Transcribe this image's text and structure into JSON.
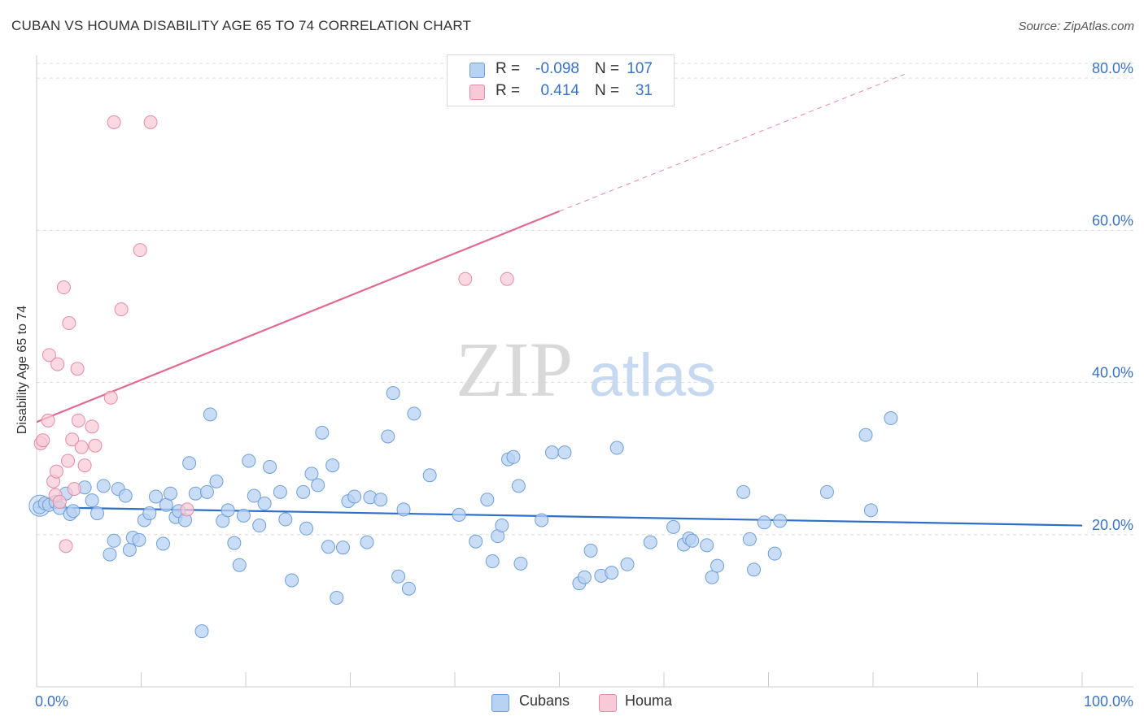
{
  "title": "CUBAN VS HOUMA DISABILITY AGE 65 TO 74 CORRELATION CHART",
  "source": "Source: ZipAtlas.com",
  "watermark": {
    "zip": "ZIP",
    "atlas": "atlas"
  },
  "legend": {
    "rows": [
      {
        "r_label": "R =",
        "r_value": "-0.098",
        "n_label": "N =",
        "n_value": "107"
      },
      {
        "r_label": "R =",
        "r_value": "0.414",
        "n_label": "N =",
        "n_value": "31"
      }
    ]
  },
  "bottom_legend": [
    "Cubans",
    "Houma"
  ],
  "colors": {
    "cubans_fill": "#b8d2f3",
    "cubans_stroke": "#6f9fd8",
    "cubans_line": "#2d6fc9",
    "houma_fill": "#f8c9d6",
    "houma_stroke": "#e88aa6",
    "houma_line": "#e06a92",
    "grid": "#dddddd",
    "axis_label": "#3b73c4"
  },
  "chart_data": {
    "type": "scatter",
    "title": "CUBAN VS HOUMA DISABILITY AGE 65 TO 74 CORRELATION CHART",
    "xlabel": "",
    "ylabel": "Disability Age 65 to 74",
    "xlim": [
      0,
      100
    ],
    "ylim": [
      0,
      83
    ],
    "x_tick_labels": [
      "0.0%",
      "100.0%"
    ],
    "y_ticks": [
      20,
      40,
      60,
      80
    ],
    "y_tick_labels": [
      "20.0%",
      "40.0%",
      "60.0%",
      "80.0%"
    ],
    "grid": "horizontal dashed",
    "series": [
      {
        "name": "Cubans",
        "trend": {
          "x": [
            0,
            100
          ],
          "y": [
            23.6,
            21.2
          ]
        },
        "points": [
          [
            0.3,
            23.6
          ],
          [
            0.8,
            24.1
          ],
          [
            1.2,
            23.9
          ],
          [
            1.8,
            24.3
          ],
          [
            2.2,
            23.5
          ],
          [
            2.8,
            25.4
          ],
          [
            3.2,
            22.7
          ],
          [
            3.5,
            23.1
          ],
          [
            4.6,
            26.2
          ],
          [
            5.3,
            24.5
          ],
          [
            5.8,
            22.8
          ],
          [
            6.4,
            26.4
          ],
          [
            7.0,
            17.4
          ],
          [
            7.4,
            19.2
          ],
          [
            7.8,
            26.0
          ],
          [
            8.5,
            25.1
          ],
          [
            8.9,
            18.0
          ],
          [
            9.2,
            19.6
          ],
          [
            9.8,
            19.3
          ],
          [
            10.3,
            21.9
          ],
          [
            10.8,
            22.8
          ],
          [
            11.4,
            25.0
          ],
          [
            12.1,
            18.8
          ],
          [
            12.4,
            23.9
          ],
          [
            12.8,
            25.4
          ],
          [
            13.3,
            22.3
          ],
          [
            13.6,
            23.1
          ],
          [
            14.2,
            21.9
          ],
          [
            14.6,
            29.4
          ],
          [
            15.2,
            25.4
          ],
          [
            15.8,
            7.3
          ],
          [
            16.3,
            25.6
          ],
          [
            16.6,
            35.8
          ],
          [
            17.2,
            27.0
          ],
          [
            17.8,
            21.8
          ],
          [
            18.3,
            23.2
          ],
          [
            18.9,
            18.9
          ],
          [
            19.4,
            16.0
          ],
          [
            19.8,
            22.5
          ],
          [
            20.3,
            29.7
          ],
          [
            20.8,
            25.1
          ],
          [
            21.3,
            21.2
          ],
          [
            21.8,
            24.1
          ],
          [
            22.3,
            28.9
          ],
          [
            23.3,
            25.6
          ],
          [
            23.8,
            22.0
          ],
          [
            24.4,
            14.0
          ],
          [
            25.5,
            25.6
          ],
          [
            25.8,
            20.8
          ],
          [
            26.3,
            28.0
          ],
          [
            26.9,
            26.5
          ],
          [
            27.3,
            33.4
          ],
          [
            27.9,
            18.4
          ],
          [
            28.3,
            29.1
          ],
          [
            28.7,
            11.7
          ],
          [
            29.3,
            18.3
          ],
          [
            29.8,
            24.4
          ],
          [
            30.4,
            25.0
          ],
          [
            31.6,
            19.0
          ],
          [
            31.9,
            24.9
          ],
          [
            32.9,
            24.6
          ],
          [
            33.6,
            32.9
          ],
          [
            34.1,
            38.6
          ],
          [
            34.6,
            14.5
          ],
          [
            35.1,
            23.3
          ],
          [
            35.6,
            12.9
          ],
          [
            36.1,
            35.9
          ],
          [
            37.6,
            27.8
          ],
          [
            40.4,
            22.6
          ],
          [
            42.0,
            19.1
          ],
          [
            43.1,
            24.6
          ],
          [
            43.6,
            16.5
          ],
          [
            44.1,
            19.8
          ],
          [
            44.5,
            21.2
          ],
          [
            45.1,
            29.9
          ],
          [
            45.6,
            30.2
          ],
          [
            46.1,
            26.4
          ],
          [
            46.3,
            16.2
          ],
          [
            48.3,
            21.9
          ],
          [
            49.3,
            30.8
          ],
          [
            50.5,
            30.8
          ],
          [
            51.9,
            13.6
          ],
          [
            52.4,
            14.4
          ],
          [
            53.0,
            17.9
          ],
          [
            54.0,
            14.6
          ],
          [
            55.0,
            15.0
          ],
          [
            55.5,
            31.4
          ],
          [
            56.5,
            16.1
          ],
          [
            58.7,
            19.0
          ],
          [
            60.9,
            21.0
          ],
          [
            61.9,
            18.7
          ],
          [
            62.4,
            19.5
          ],
          [
            62.7,
            19.2
          ],
          [
            64.1,
            18.6
          ],
          [
            64.6,
            14.4
          ],
          [
            65.1,
            15.9
          ],
          [
            67.6,
            25.6
          ],
          [
            68.2,
            19.4
          ],
          [
            68.6,
            15.4
          ],
          [
            69.6,
            21.6
          ],
          [
            70.6,
            17.5
          ],
          [
            71.1,
            21.8
          ],
          [
            75.6,
            25.6
          ],
          [
            79.3,
            33.1
          ],
          [
            79.8,
            23.2
          ],
          [
            81.7,
            35.3
          ]
        ]
      },
      {
        "name": "Houma",
        "trend": {
          "x": [
            0,
            50
          ],
          "y": [
            34.8,
            62.5
          ]
        },
        "trend_extension": {
          "x": [
            50,
            83
          ],
          "y": [
            62.5,
            80.5
          ]
        },
        "points": [
          [
            0.4,
            32.0
          ],
          [
            0.6,
            32.4
          ],
          [
            1.1,
            35.0
          ],
          [
            1.2,
            43.6
          ],
          [
            1.6,
            27.0
          ],
          [
            1.8,
            25.2
          ],
          [
            1.9,
            28.3
          ],
          [
            2.0,
            42.4
          ],
          [
            2.2,
            24.3
          ],
          [
            2.6,
            52.5
          ],
          [
            2.8,
            18.5
          ],
          [
            3.0,
            29.7
          ],
          [
            3.1,
            47.8
          ],
          [
            3.4,
            32.5
          ],
          [
            3.6,
            26.0
          ],
          [
            3.9,
            41.8
          ],
          [
            4.0,
            35.0
          ],
          [
            4.3,
            31.5
          ],
          [
            4.6,
            29.1
          ],
          [
            5.3,
            34.2
          ],
          [
            5.6,
            31.7
          ],
          [
            7.1,
            38.0
          ],
          [
            7.4,
            74.2
          ],
          [
            8.1,
            49.6
          ],
          [
            9.9,
            57.4
          ],
          [
            10.9,
            74.2
          ],
          [
            14.4,
            23.3
          ],
          [
            41.0,
            53.6
          ],
          [
            45.0,
            53.6
          ]
        ]
      }
    ]
  }
}
